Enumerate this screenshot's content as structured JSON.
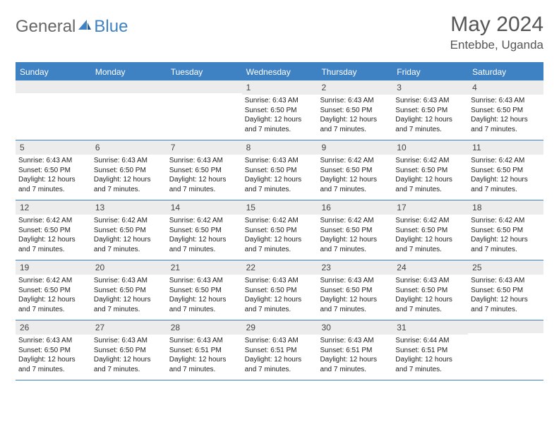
{
  "logo": {
    "part1": "General",
    "part2": "Blue"
  },
  "title": "May 2024",
  "location": "Entebbe, Uganda",
  "colors": {
    "accent": "#3e82c4",
    "header_bg": "#3e82c4",
    "header_text": "#ffffff",
    "daynum_bg": "#ececec",
    "text": "#222222",
    "title_text": "#555555",
    "logo_gray": "#666666"
  },
  "day_labels": [
    "Sunday",
    "Monday",
    "Tuesday",
    "Wednesday",
    "Thursday",
    "Friday",
    "Saturday"
  ],
  "weeks": [
    [
      {
        "n": "",
        "sr": "",
        "ss": "",
        "dl": ""
      },
      {
        "n": "",
        "sr": "",
        "ss": "",
        "dl": ""
      },
      {
        "n": "",
        "sr": "",
        "ss": "",
        "dl": ""
      },
      {
        "n": "1",
        "sr": "6:43 AM",
        "ss": "6:50 PM",
        "dl": "12 hours and 7 minutes."
      },
      {
        "n": "2",
        "sr": "6:43 AM",
        "ss": "6:50 PM",
        "dl": "12 hours and 7 minutes."
      },
      {
        "n": "3",
        "sr": "6:43 AM",
        "ss": "6:50 PM",
        "dl": "12 hours and 7 minutes."
      },
      {
        "n": "4",
        "sr": "6:43 AM",
        "ss": "6:50 PM",
        "dl": "12 hours and 7 minutes."
      }
    ],
    [
      {
        "n": "5",
        "sr": "6:43 AM",
        "ss": "6:50 PM",
        "dl": "12 hours and 7 minutes."
      },
      {
        "n": "6",
        "sr": "6:43 AM",
        "ss": "6:50 PM",
        "dl": "12 hours and 7 minutes."
      },
      {
        "n": "7",
        "sr": "6:43 AM",
        "ss": "6:50 PM",
        "dl": "12 hours and 7 minutes."
      },
      {
        "n": "8",
        "sr": "6:43 AM",
        "ss": "6:50 PM",
        "dl": "12 hours and 7 minutes."
      },
      {
        "n": "9",
        "sr": "6:42 AM",
        "ss": "6:50 PM",
        "dl": "12 hours and 7 minutes."
      },
      {
        "n": "10",
        "sr": "6:42 AM",
        "ss": "6:50 PM",
        "dl": "12 hours and 7 minutes."
      },
      {
        "n": "11",
        "sr": "6:42 AM",
        "ss": "6:50 PM",
        "dl": "12 hours and 7 minutes."
      }
    ],
    [
      {
        "n": "12",
        "sr": "6:42 AM",
        "ss": "6:50 PM",
        "dl": "12 hours and 7 minutes."
      },
      {
        "n": "13",
        "sr": "6:42 AM",
        "ss": "6:50 PM",
        "dl": "12 hours and 7 minutes."
      },
      {
        "n": "14",
        "sr": "6:42 AM",
        "ss": "6:50 PM",
        "dl": "12 hours and 7 minutes."
      },
      {
        "n": "15",
        "sr": "6:42 AM",
        "ss": "6:50 PM",
        "dl": "12 hours and 7 minutes."
      },
      {
        "n": "16",
        "sr": "6:42 AM",
        "ss": "6:50 PM",
        "dl": "12 hours and 7 minutes."
      },
      {
        "n": "17",
        "sr": "6:42 AM",
        "ss": "6:50 PM",
        "dl": "12 hours and 7 minutes."
      },
      {
        "n": "18",
        "sr": "6:42 AM",
        "ss": "6:50 PM",
        "dl": "12 hours and 7 minutes."
      }
    ],
    [
      {
        "n": "19",
        "sr": "6:42 AM",
        "ss": "6:50 PM",
        "dl": "12 hours and 7 minutes."
      },
      {
        "n": "20",
        "sr": "6:43 AM",
        "ss": "6:50 PM",
        "dl": "12 hours and 7 minutes."
      },
      {
        "n": "21",
        "sr": "6:43 AM",
        "ss": "6:50 PM",
        "dl": "12 hours and 7 minutes."
      },
      {
        "n": "22",
        "sr": "6:43 AM",
        "ss": "6:50 PM",
        "dl": "12 hours and 7 minutes."
      },
      {
        "n": "23",
        "sr": "6:43 AM",
        "ss": "6:50 PM",
        "dl": "12 hours and 7 minutes."
      },
      {
        "n": "24",
        "sr": "6:43 AM",
        "ss": "6:50 PM",
        "dl": "12 hours and 7 minutes."
      },
      {
        "n": "25",
        "sr": "6:43 AM",
        "ss": "6:50 PM",
        "dl": "12 hours and 7 minutes."
      }
    ],
    [
      {
        "n": "26",
        "sr": "6:43 AM",
        "ss": "6:50 PM",
        "dl": "12 hours and 7 minutes."
      },
      {
        "n": "27",
        "sr": "6:43 AM",
        "ss": "6:50 PM",
        "dl": "12 hours and 7 minutes."
      },
      {
        "n": "28",
        "sr": "6:43 AM",
        "ss": "6:51 PM",
        "dl": "12 hours and 7 minutes."
      },
      {
        "n": "29",
        "sr": "6:43 AM",
        "ss": "6:51 PM",
        "dl": "12 hours and 7 minutes."
      },
      {
        "n": "30",
        "sr": "6:43 AM",
        "ss": "6:51 PM",
        "dl": "12 hours and 7 minutes."
      },
      {
        "n": "31",
        "sr": "6:44 AM",
        "ss": "6:51 PM",
        "dl": "12 hours and 7 minutes."
      },
      {
        "n": "",
        "sr": "",
        "ss": "",
        "dl": ""
      }
    ]
  ],
  "labels": {
    "sunrise": "Sunrise: ",
    "sunset": "Sunset: ",
    "daylight": "Daylight: "
  }
}
